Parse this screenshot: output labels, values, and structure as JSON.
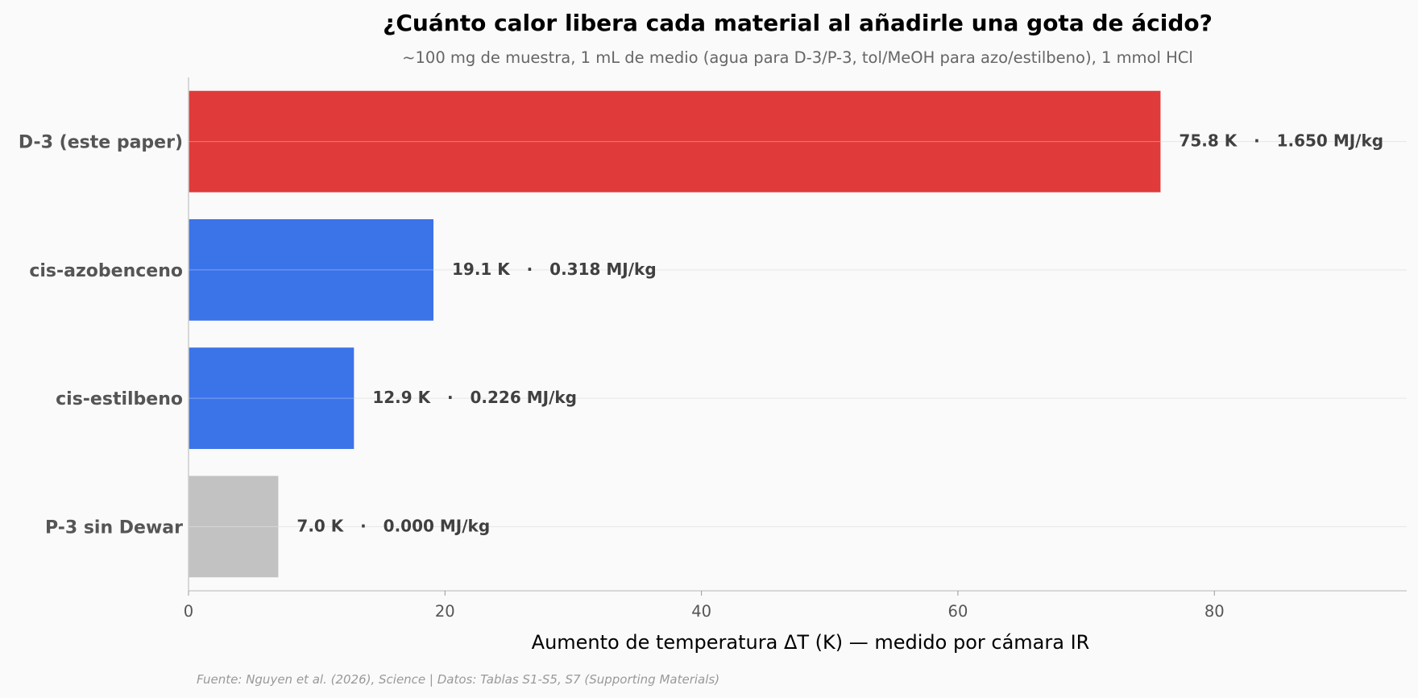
{
  "chart_data": {
    "type": "bar",
    "orientation": "horizontal",
    "title": "¿Cuánto calor libera cada material al añadirle una gota de ácido?",
    "subtitle": "~100 mg de muestra, 1 mL de medio (agua para D-3/P-3, tol/MeOH para azo/estilbeno), 1 mmol HCl",
    "xlabel": "Aumento de temperatura ΔT (K) — medido por cámara IR",
    "source": "Fuente: Nguyen et al. (2026), Science | Datos: Tablas S1-S5, S7 (Supporting Materials)",
    "xlim": [
      0,
      95
    ],
    "xticks": [
      0,
      20,
      40,
      60,
      80
    ],
    "xtick_labels": [
      "0",
      "20",
      "40",
      "60",
      "80"
    ],
    "grid": "horizontal, light",
    "categories": [
      "D-3 (este paper)",
      "cis-azobenceno",
      "cis-estilbeno",
      "P-3 sin Dewar"
    ],
    "values": [
      75.8,
      19.1,
      12.9,
      7.0
    ],
    "value_labels": [
      "75.8 K   ·   1.650 MJ/kg",
      "19.1 K   ·   0.318 MJ/kg",
      "12.9 K   ·   0.226 MJ/kg",
      "7.0 K   ·   0.000 MJ/kg"
    ],
    "bar_colors": [
      "#e03a3a",
      "#3b73e9",
      "#3b73e9",
      "#c2c2c2"
    ]
  }
}
